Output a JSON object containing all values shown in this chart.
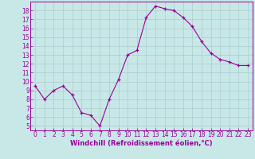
{
  "x": [
    0,
    1,
    2,
    3,
    4,
    5,
    6,
    7,
    8,
    9,
    10,
    11,
    12,
    13,
    14,
    15,
    16,
    17,
    18,
    19,
    20,
    21,
    22,
    23
  ],
  "y": [
    9.5,
    8.0,
    9.0,
    9.5,
    8.5,
    6.5,
    6.2,
    5.0,
    8.0,
    10.2,
    13.0,
    13.5,
    17.2,
    18.5,
    18.2,
    18.0,
    17.2,
    16.2,
    14.5,
    13.2,
    12.5,
    12.2,
    11.8,
    11.8
  ],
  "line_color": "#990099",
  "marker": "+",
  "marker_color": "#990099",
  "bg_color": "#c8e8e8",
  "grid_color": "#aacccc",
  "tick_label_color": "#990099",
  "xlabel": "Windchill (Refroidissement éolien,°C)",
  "xlabel_color": "#990099",
  "xlim": [
    -0.5,
    23.5
  ],
  "ylim": [
    4.5,
    19.0
  ],
  "yticks": [
    5,
    6,
    7,
    8,
    9,
    10,
    11,
    12,
    13,
    14,
    15,
    16,
    17,
    18
  ],
  "xticks": [
    0,
    1,
    2,
    3,
    4,
    5,
    6,
    7,
    8,
    9,
    10,
    11,
    12,
    13,
    14,
    15,
    16,
    17,
    18,
    19,
    20,
    21,
    22,
    23
  ],
  "axis_fontsize": 5.5,
  "label_fontsize": 6.0
}
